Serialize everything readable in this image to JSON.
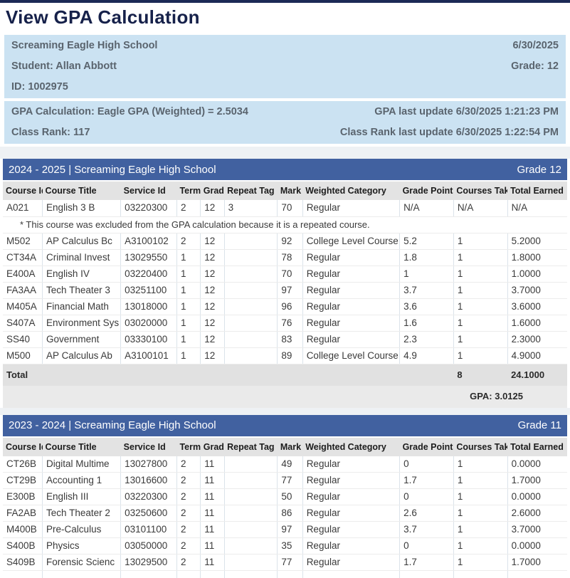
{
  "page": {
    "title": "View GPA Calculation"
  },
  "student_info": {
    "school": "Screaming Eagle High School",
    "date": "6/30/2025",
    "student": "Student: Allan Abbott",
    "grade": "Grade: 12",
    "student_id": "ID: 1002975"
  },
  "gpa_info": {
    "calculation": "GPA Calculation: Eagle GPA (Weighted) = 2.5034",
    "gpa_last_update": "GPA last update 6/30/2025 1:21:23 PM",
    "class_rank": "Class Rank: 117",
    "class_rank_last_update": "Class Rank last update 6/30/2025 1:22:54 PM"
  },
  "table_columns": [
    "Course Id",
    "Course Title",
    "Service Id",
    "Term",
    "Grade",
    "Repeat Tag",
    "Mark",
    "Weighted Category",
    "Grade Points",
    "Courses Taken",
    "Total Earned"
  ],
  "sections": [
    {
      "title": "2024 - 2025 | Screaming Eagle High School",
      "grade_label": "Grade 12",
      "rows": [
        {
          "cells": [
            "A021",
            "English 3 B",
            "03220300",
            "2",
            "12",
            "3",
            "70",
            "Regular",
            "N/A",
            "N/A",
            "N/A"
          ]
        },
        {
          "note": "* This course was excluded from the GPA calculation because it is a repeated course."
        },
        {
          "cells": [
            "M502",
            "AP Calculus Bc",
            "A3100102",
            "2",
            "12",
            "",
            "92",
            "College Level Course",
            "5.2",
            "1",
            "5.2000"
          ]
        },
        {
          "cells": [
            "CT34A",
            "Criminal Invest",
            "13029550",
            "1",
            "12",
            "",
            "78",
            "Regular",
            "1.8",
            "1",
            "1.8000"
          ]
        },
        {
          "cells": [
            "E400A",
            "English IV",
            "03220400",
            "1",
            "12",
            "",
            "70",
            "Regular",
            "1",
            "1",
            "1.0000"
          ]
        },
        {
          "cells": [
            "FA3AA",
            "Tech Theater 3",
            "03251100",
            "1",
            "12",
            "",
            "97",
            "Regular",
            "3.7",
            "1",
            "3.7000"
          ]
        },
        {
          "cells": [
            "M405A",
            "Financial Math",
            "13018000",
            "1",
            "12",
            "",
            "96",
            "Regular",
            "3.6",
            "1",
            "3.6000"
          ]
        },
        {
          "cells": [
            "S407A",
            "Environment Sys",
            "03020000",
            "1",
            "12",
            "",
            "76",
            "Regular",
            "1.6",
            "1",
            "1.6000"
          ]
        },
        {
          "cells": [
            "SS40",
            "Government",
            "03330100",
            "1",
            "12",
            "",
            "83",
            "Regular",
            "2.3",
            "1",
            "2.3000"
          ]
        },
        {
          "cells": [
            "M500",
            "AP Calculus Ab",
            "A3100101",
            "1",
            "12",
            "",
            "89",
            "College Level Course",
            "4.9",
            "1",
            "4.9000"
          ]
        }
      ],
      "total": {
        "label": "Total",
        "courses_taken": "8",
        "total_earned": "24.1000"
      },
      "gpa_summary": "GPA: 3.0125"
    },
    {
      "title": "2023 - 2024 | Screaming Eagle High School",
      "grade_label": "Grade 11",
      "rows": [
        {
          "cells": [
            "CT26B",
            "Digital Multime",
            "13027800",
            "2",
            "11",
            "",
            "49",
            "Regular",
            "0",
            "1",
            "0.0000"
          ]
        },
        {
          "cells": [
            "CT29B",
            "Accounting 1",
            "13016600",
            "2",
            "11",
            "",
            "77",
            "Regular",
            "1.7",
            "1",
            "1.7000"
          ]
        },
        {
          "cells": [
            "E300B",
            "English III",
            "03220300",
            "2",
            "11",
            "",
            "50",
            "Regular",
            "0",
            "1",
            "0.0000"
          ]
        },
        {
          "cells": [
            "FA2AB",
            "Tech Theater 2",
            "03250600",
            "2",
            "11",
            "",
            "86",
            "Regular",
            "2.6",
            "1",
            "2.6000"
          ]
        },
        {
          "cells": [
            "M400B",
            "Pre-Calculus",
            "03101100",
            "2",
            "11",
            "",
            "97",
            "Regular",
            "3.7",
            "1",
            "3.7000"
          ]
        },
        {
          "cells": [
            "S400B",
            "Physics",
            "03050000",
            "2",
            "11",
            "",
            "35",
            "Regular",
            "0",
            "1",
            "0.0000"
          ]
        },
        {
          "cells": [
            "S409B",
            "Forensic Scienc",
            "13029500",
            "2",
            "11",
            "",
            "77",
            "Regular",
            "1.7",
            "1",
            "1.7000"
          ]
        },
        {
          "partial": true,
          "cells": [
            "",
            "",
            "",
            "",
            "",
            "",
            "",
            "",
            "",
            "",
            ""
          ]
        }
      ]
    }
  ],
  "colors": {
    "top_strip_navy": "#1c2a56",
    "title_navy": "#16214a",
    "section_header_blue": "#4161a0",
    "info_box_blue": "#cbe2f2",
    "info_text_gray": "#5a646e",
    "column_header_gray": "#e3e3e3",
    "total_row_gray": "#e1e1e1",
    "gpa_row_gray": "#eaeaea"
  }
}
